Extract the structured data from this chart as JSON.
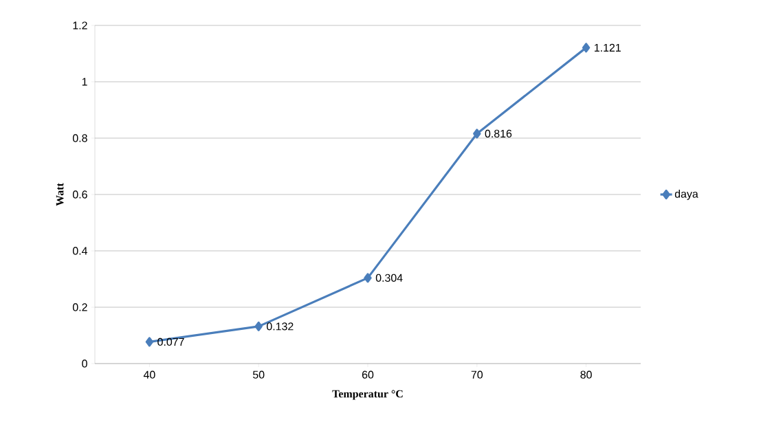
{
  "chart_data": {
    "type": "line",
    "xlabel": "Temperatur °C",
    "ylabel": "Watt",
    "categories": [
      "40",
      "50",
      "60",
      "70",
      "80"
    ],
    "series": [
      {
        "name": "daya",
        "color": "#4a7ebb",
        "values": [
          0.077,
          0.132,
          0.304,
          0.816,
          1.121
        ]
      }
    ],
    "ylim": [
      0,
      1.2
    ],
    "yticks": [
      0,
      0.2,
      0.4,
      0.6,
      0.8,
      1,
      1.2
    ],
    "grid": "y",
    "legend": "right",
    "marker": "diamond",
    "line_style": "solid",
    "data_labels": true
  }
}
